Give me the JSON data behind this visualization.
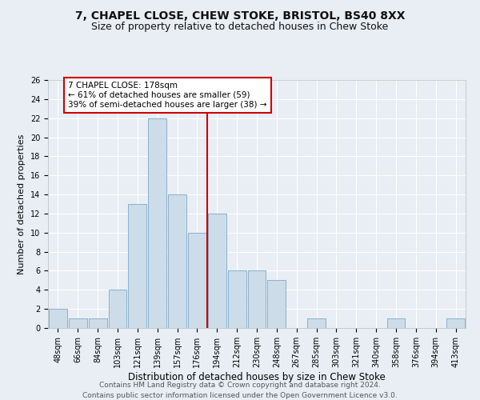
{
  "title1": "7, CHAPEL CLOSE, CHEW STOKE, BRISTOL, BS40 8XX",
  "title2": "Size of property relative to detached houses in Chew Stoke",
  "xlabel": "Distribution of detached houses by size in Chew Stoke",
  "ylabel": "Number of detached properties",
  "bar_labels": [
    "48sqm",
    "66sqm",
    "84sqm",
    "103sqm",
    "121sqm",
    "139sqm",
    "157sqm",
    "176sqm",
    "194sqm",
    "212sqm",
    "230sqm",
    "248sqm",
    "267sqm",
    "285sqm",
    "303sqm",
    "321sqm",
    "340sqm",
    "358sqm",
    "376sqm",
    "394sqm",
    "413sqm"
  ],
  "bar_values": [
    2,
    1,
    1,
    4,
    13,
    22,
    14,
    10,
    12,
    6,
    6,
    5,
    0,
    1,
    0,
    0,
    0,
    1,
    0,
    0,
    1
  ],
  "bar_color": "#ccdce8",
  "bar_edgecolor": "#8ab0cc",
  "vline_x_index": 7.5,
  "annotation_text": "7 CHAPEL CLOSE: 178sqm\n← 61% of detached houses are smaller (59)\n39% of semi-detached houses are larger (38) →",
  "annotation_box_facecolor": "#ffffff",
  "annotation_box_edgecolor": "#cc0000",
  "vline_color": "#cc0000",
  "bg_color": "#e8eef4",
  "grid_color": "#ffffff",
  "ylim": [
    0,
    26
  ],
  "yticks": [
    0,
    2,
    4,
    6,
    8,
    10,
    12,
    14,
    16,
    18,
    20,
    22,
    24,
    26
  ],
  "footer1": "Contains HM Land Registry data © Crown copyright and database right 2024.",
  "footer2": "Contains public sector information licensed under the Open Government Licence v3.0.",
  "title1_fontsize": 10,
  "title2_fontsize": 9,
  "xlabel_fontsize": 8.5,
  "ylabel_fontsize": 8,
  "tick_fontsize": 7,
  "annot_fontsize": 7.5,
  "footer_fontsize": 6.5
}
